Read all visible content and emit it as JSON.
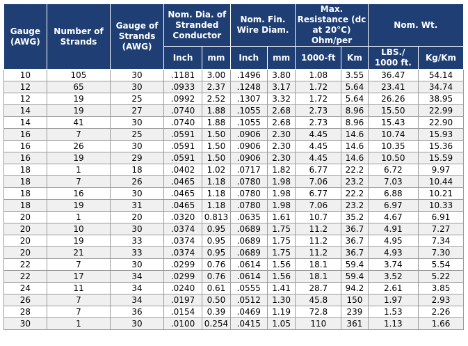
{
  "header": {
    "gauge": "Gauge (AWG)",
    "strands": "Number of Strands",
    "gauge_strands": "Gauge of Strands (AWG)",
    "dia_cond": "Nom. Dia. of Stranded Conductor",
    "fin_dia": "Nom. Fin. Wire Diam.",
    "resistance": "Max. Resistance (dc at 20°C) Ohm/per",
    "weight": "Nom. Wt.",
    "sub": {
      "inch1": "Inch",
      "mm1": "mm",
      "inch2": "Inch",
      "mm2": "mm",
      "ft1000": "1000-ft",
      "km": "Km",
      "lbs": "LBS./ 1000 ft.",
      "kgkm": "Kg/Km"
    }
  },
  "rows": [
    [
      "10",
      "105",
      "30",
      ".1181",
      "3.00",
      ".1496",
      "3.80",
      "1.08",
      "3.55",
      "36.47",
      "54.14"
    ],
    [
      "12",
      "65",
      "30",
      ".0933",
      "2.37",
      ".1248",
      "3.17",
      "1.72",
      "5.64",
      "23.41",
      "34.74"
    ],
    [
      "12",
      "19",
      "25",
      ".0992",
      "2.52",
      ".1307",
      "3.32",
      "1.72",
      "5.64",
      "26.26",
      "38.95"
    ],
    [
      "14",
      "19",
      "27",
      ".0740",
      "1.88",
      ".1055",
      "2.68",
      "2.73",
      "8.96",
      "15.50",
      "22.99"
    ],
    [
      "14",
      "41",
      "30",
      ".0740",
      "1.88",
      ".1055",
      "2.68",
      "2.73",
      "8.96",
      "15.43",
      "22.90"
    ],
    [
      "16",
      "7",
      "25",
      ".0591",
      "1.50",
      ".0906",
      "2.30",
      "4.45",
      "14.6",
      "10.74",
      "15.93"
    ],
    [
      "16",
      "26",
      "30",
      ".0591",
      "1.50",
      ".0906",
      "2.30",
      "4.45",
      "14.6",
      "10.35",
      "15.36"
    ],
    [
      "16",
      "19",
      "29",
      ".0591",
      "1.50",
      ".0906",
      "2.30",
      "4.45",
      "14.6",
      "10.50",
      "15.59"
    ],
    [
      "18",
      "1",
      "18",
      ".0402",
      "1.02",
      ".0717",
      "1.82",
      "6.77",
      "22.2",
      "6.72",
      "9.97"
    ],
    [
      "18",
      "7",
      "26",
      ".0465",
      "1.18",
      ".0780",
      "1.98",
      "7.06",
      "23.2",
      "7.03",
      "10.44"
    ],
    [
      "18",
      "16",
      "30",
      ".0465",
      "1.18",
      ".0780",
      "1.98",
      "6.77",
      "22.2",
      "6.88",
      "10.21"
    ],
    [
      "18",
      "19",
      "31",
      ".0465",
      "1.18",
      ".0780",
      "1.98",
      "7.06",
      "23.2",
      "6.97",
      "10.33"
    ],
    [
      "20",
      "1",
      "20",
      ".0320",
      "0.813",
      ".0635",
      "1.61",
      "10.7",
      "35.2",
      "4.67",
      "6.91"
    ],
    [
      "20",
      "10",
      "30",
      ".0374",
      "0.95",
      ".0689",
      "1.75",
      "11.2",
      "36.7",
      "4.91",
      "7.27"
    ],
    [
      "20",
      "19",
      "33",
      ".0374",
      "0.95",
      ".0689",
      "1.75",
      "11.2",
      "36.7",
      "4.95",
      "7.34"
    ],
    [
      "20",
      "21",
      "33",
      ".0374",
      "0.95",
      ".0689",
      "1.75",
      "11.2",
      "36.7",
      "4.93",
      "7.30"
    ],
    [
      "22",
      "7",
      "30",
      ".0299",
      "0.76",
      ".0614",
      "1.56",
      "18.1",
      "59.4",
      "3.74",
      "5.54"
    ],
    [
      "22",
      "17",
      "34",
      ".0299",
      "0.76",
      ".0614",
      "1.56",
      "18.1",
      "59.4",
      "3.52",
      "5.22"
    ],
    [
      "24",
      "11",
      "34",
      ".0240",
      "0.61",
      ".0555",
      "1.41",
      "28.7",
      "94.2",
      "2.61",
      "3.85"
    ],
    [
      "26",
      "7",
      "34",
      ".0197",
      "0.50",
      ".0512",
      "1.30",
      "45.8",
      "150",
      "1.97",
      "2.93"
    ],
    [
      "28",
      "7",
      "36",
      ".0154",
      "0.39",
      ".0469",
      "1.19",
      "72.8",
      "239",
      "1.53",
      "2.26"
    ],
    [
      "30",
      "1",
      "30",
      ".0100",
      "0.254",
      ".0415",
      "1.05",
      "110",
      "361",
      "1.13",
      "1.66"
    ]
  ]
}
